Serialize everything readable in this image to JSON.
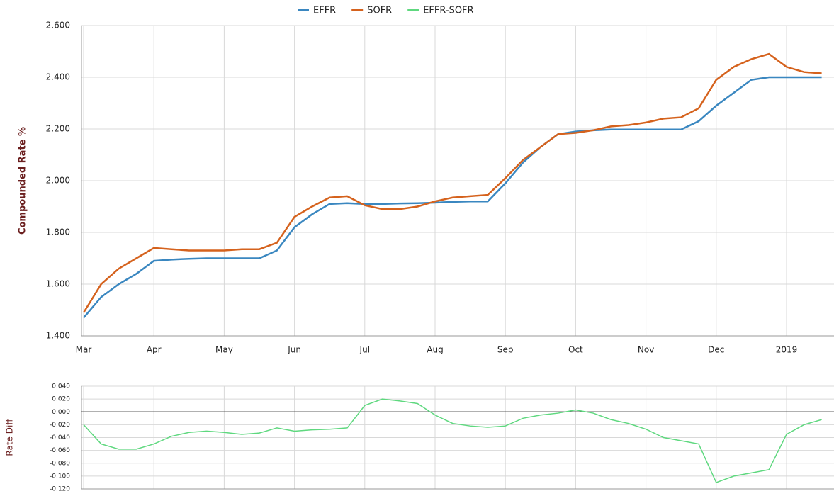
{
  "chart_data": [
    {
      "type": "line",
      "y_label": "Compounded Rate %",
      "categories": [
        "Mar",
        null,
        null,
        null,
        "Apr",
        null,
        null,
        null,
        "May",
        null,
        null,
        null,
        "Jun",
        null,
        null,
        null,
        "Jul",
        null,
        null,
        null,
        "Aug",
        null,
        null,
        null,
        "Sep",
        null,
        null,
        null,
        "Oct",
        null,
        null,
        null,
        "Nov",
        null,
        null,
        null,
        "Dec",
        null,
        null,
        null,
        "2019",
        null,
        null
      ],
      "series": [
        {
          "name": "EFFR",
          "color": "#3a87c0",
          "values": [
            1.47,
            1.55,
            1.6,
            1.64,
            1.69,
            1.695,
            1.698,
            1.7,
            1.7,
            1.7,
            1.7,
            1.73,
            1.82,
            1.87,
            1.91,
            1.913,
            1.91,
            1.91,
            1.912,
            1.913,
            1.915,
            1.918,
            1.92,
            1.92,
            1.99,
            2.07,
            2.13,
            2.18,
            2.19,
            2.195,
            2.198,
            2.198,
            2.198,
            2.198,
            2.198,
            2.23,
            2.29,
            2.34,
            2.39,
            2.4,
            2.4,
            2.4,
            2.4
          ]
        },
        {
          "name": "SOFR",
          "color": "#d5621d",
          "values": [
            1.49,
            1.6,
            1.66,
            1.7,
            1.74,
            1.735,
            1.73,
            1.73,
            1.73,
            1.735,
            1.735,
            1.76,
            1.86,
            1.9,
            1.935,
            1.94,
            1.905,
            1.89,
            1.89,
            1.9,
            1.92,
            1.935,
            1.94,
            1.945,
            2.01,
            2.08,
            2.13,
            2.18,
            2.185,
            2.195,
            2.21,
            2.215,
            2.225,
            2.24,
            2.245,
            2.28,
            2.39,
            2.44,
            2.47,
            2.49,
            2.44,
            2.42,
            2.415
          ]
        }
      ],
      "ylim": [
        1.4,
        2.6
      ],
      "yticks": [
        {
          "value": 1.4,
          "label": "1.400"
        },
        {
          "value": 1.6,
          "label": "1.600"
        },
        {
          "value": 1.8,
          "label": "1.800"
        },
        {
          "value": 2.0,
          "label": "2.000"
        },
        {
          "value": 2.2,
          "label": "2.200"
        },
        {
          "value": 2.4,
          "label": "2.400"
        },
        {
          "value": 2.6,
          "label": "2.600"
        }
      ],
      "grid": true,
      "legend": "top"
    },
    {
      "type": "line",
      "y_label": "Rate Diff",
      "series": [
        {
          "name": "EFFR-SOFR",
          "color": "#5fd87f",
          "values": [
            -0.02,
            -0.05,
            -0.058,
            -0.058,
            -0.05,
            -0.038,
            -0.032,
            -0.03,
            -0.032,
            -0.035,
            -0.033,
            -0.025,
            -0.03,
            -0.028,
            -0.027,
            -0.025,
            0.01,
            0.02,
            0.017,
            0.013,
            -0.005,
            -0.018,
            -0.022,
            -0.024,
            -0.022,
            -0.01,
            -0.005,
            -0.002,
            0.003,
            -0.002,
            -0.012,
            -0.018,
            -0.027,
            -0.04,
            -0.045,
            -0.05,
            -0.11,
            -0.1,
            -0.095,
            -0.09,
            -0.035,
            -0.02,
            -0.012
          ]
        }
      ],
      "ylim": [
        -0.12,
        0.04
      ],
      "yticks": [
        {
          "value": -0.12,
          "label": "-0.120"
        },
        {
          "value": -0.1,
          "label": "-0.100"
        },
        {
          "value": -0.08,
          "label": "-0.080"
        },
        {
          "value": -0.06,
          "label": "-0.060"
        },
        {
          "value": -0.04,
          "label": "-0.040"
        },
        {
          "value": -0.02,
          "label": "-0.020"
        },
        {
          "value": 0,
          "label": "0.000"
        },
        {
          "value": 0.02,
          "label": "0.020"
        },
        {
          "value": 0.04,
          "label": "0.040"
        }
      ],
      "grid": true
    }
  ]
}
